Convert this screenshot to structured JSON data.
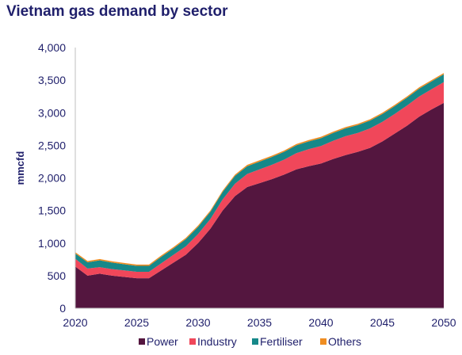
{
  "chart_data": {
    "type": "area",
    "title": "Vietnam gas demand by sector",
    "ylabel": "mmcfd",
    "xlabel": "",
    "xlim": [
      2020,
      2050
    ],
    "ylim": [
      0,
      4000
    ],
    "x_ticks": [
      "2020",
      "2025",
      "2030",
      "2035",
      "2040",
      "2045",
      "2050"
    ],
    "y_ticks": [
      "0",
      "500",
      "1,000",
      "1,500",
      "2,000",
      "2,500",
      "3,000",
      "3,500",
      "4,000"
    ],
    "x": [
      2020,
      2021,
      2022,
      2023,
      2024,
      2025,
      2026,
      2027,
      2028,
      2029,
      2030,
      2031,
      2032,
      2033,
      2034,
      2035,
      2036,
      2037,
      2038,
      2039,
      2040,
      2041,
      2042,
      2043,
      2044,
      2045,
      2046,
      2047,
      2048,
      2049,
      2050
    ],
    "stacked": true,
    "legend_position": "bottom",
    "series": [
      {
        "name": "Power",
        "color": "#54163f",
        "values": [
          640,
          500,
          530,
          500,
          480,
          460,
          460,
          580,
          700,
          820,
          1000,
          1220,
          1500,
          1720,
          1860,
          1920,
          1980,
          2050,
          2130,
          2180,
          2220,
          2290,
          2350,
          2400,
          2460,
          2560,
          2680,
          2800,
          2940,
          3050,
          3150
        ]
      },
      {
        "name": "Industry",
        "color": "#f0475a",
        "values": [
          120,
          110,
          100,
          100,
          100,
          100,
          100,
          110,
          120,
          130,
          140,
          150,
          170,
          190,
          200,
          210,
          220,
          230,
          250,
          260,
          270,
          280,
          290,
          290,
          300,
          300,
          300,
          310,
          310,
          310,
          320
        ]
      },
      {
        "name": "Fertiliser",
        "color": "#168889",
        "values": [
          80,
          95,
          105,
          100,
          95,
          90,
          90,
          100,
          100,
          110,
          110,
          110,
          115,
          120,
          120,
          120,
          120,
          120,
          120,
          120,
          120,
          120,
          120,
          120,
          120,
          120,
          120,
          120,
          120,
          120,
          120
        ]
      },
      {
        "name": "Others",
        "color": "#ef8d22",
        "values": [
          20,
          20,
          20,
          20,
          20,
          20,
          20,
          20,
          20,
          20,
          20,
          20,
          20,
          20,
          20,
          20,
          20,
          20,
          20,
          20,
          20,
          20,
          20,
          20,
          20,
          20,
          20,
          20,
          20,
          20,
          20
        ]
      }
    ]
  }
}
